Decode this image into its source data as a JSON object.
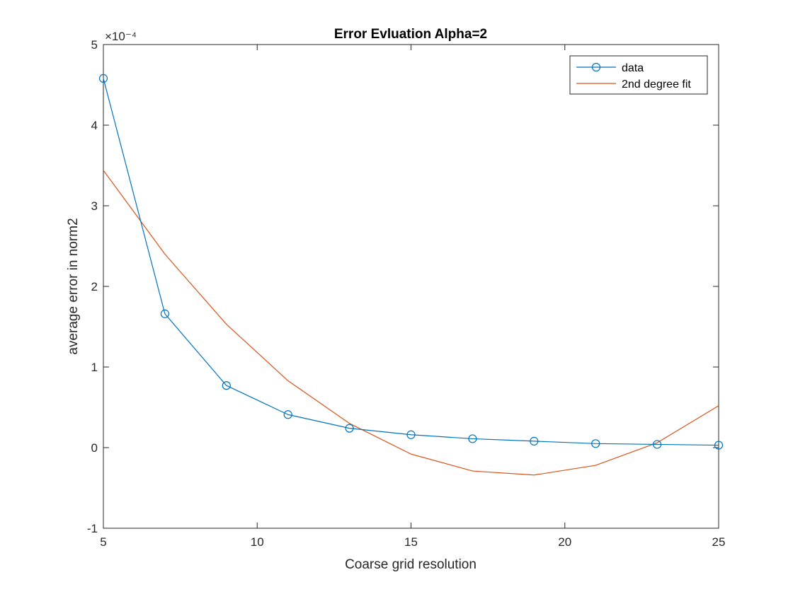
{
  "chart_data": {
    "type": "line",
    "title": "Error Evluation Alpha=2",
    "xlabel": "Coarse grid resolution",
    "ylabel": "average error in norm2",
    "exponent_label": "×10⁻⁴",
    "xlim": [
      5,
      25
    ],
    "ylim": [
      -1,
      5
    ],
    "xticks": [
      5,
      10,
      15,
      20,
      25
    ],
    "yticks": [
      -1,
      0,
      1,
      2,
      3,
      4,
      5
    ],
    "grid": false,
    "legend_position": "top-right",
    "series": [
      {
        "name": "data",
        "color": "#0072BD",
        "marker": "circle",
        "x": [
          5,
          7,
          9,
          11,
          13,
          15,
          17,
          19,
          21,
          23,
          25
        ],
        "y": [
          4.58,
          1.66,
          0.77,
          0.41,
          0.24,
          0.16,
          0.11,
          0.08,
          0.05,
          0.04,
          0.03
        ]
      },
      {
        "name": "2nd degree fit",
        "color": "#D95319",
        "marker": "none",
        "x": [
          5,
          7,
          9,
          11,
          13,
          15,
          17,
          19,
          21,
          23,
          25
        ],
        "y": [
          3.44,
          2.4,
          1.53,
          0.83,
          0.3,
          -0.08,
          -0.29,
          -0.34,
          -0.22,
          0.06,
          0.52
        ]
      }
    ]
  }
}
